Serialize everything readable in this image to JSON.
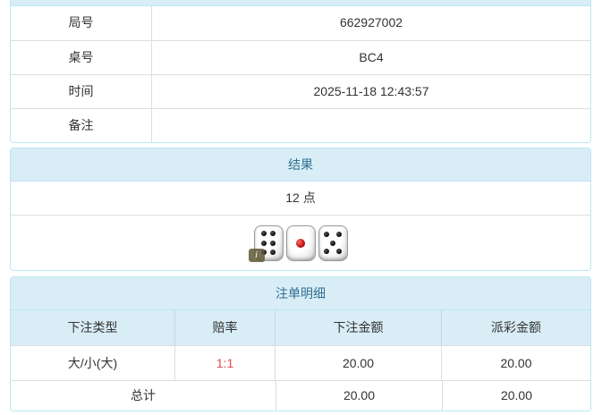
{
  "colors": {
    "header_bg": "#d9edf7",
    "panel_border": "#bce8f1",
    "header_text": "#31708f",
    "divider": "#dddddd",
    "odds_red": "#dd4f4f",
    "body_text": "#333333"
  },
  "game_info": {
    "rows": [
      {
        "label": "局号",
        "value": "662927002"
      },
      {
        "label": "桌号",
        "value": "BC4"
      },
      {
        "label": "时间",
        "value": "2025-11-18 12:43:57"
      },
      {
        "label": "备注",
        "value": ""
      }
    ]
  },
  "result": {
    "header": "结果",
    "points": "12 点",
    "dice": [
      {
        "value": 6,
        "color": "black"
      },
      {
        "value": 1,
        "color": "red"
      },
      {
        "value": 5,
        "color": "black"
      }
    ],
    "info_badge": "i"
  },
  "bets": {
    "header": "注单明细",
    "columns": [
      "下注类型",
      "赔率",
      "下注金额",
      "派彩金额"
    ],
    "rows": [
      {
        "type": "大/小(大)",
        "odds": "1:1",
        "bet_amount": "20.00",
        "payout_amount": "20.00"
      }
    ],
    "total": {
      "label": "总计",
      "bet_amount": "20.00",
      "payout_amount": "20.00"
    }
  }
}
